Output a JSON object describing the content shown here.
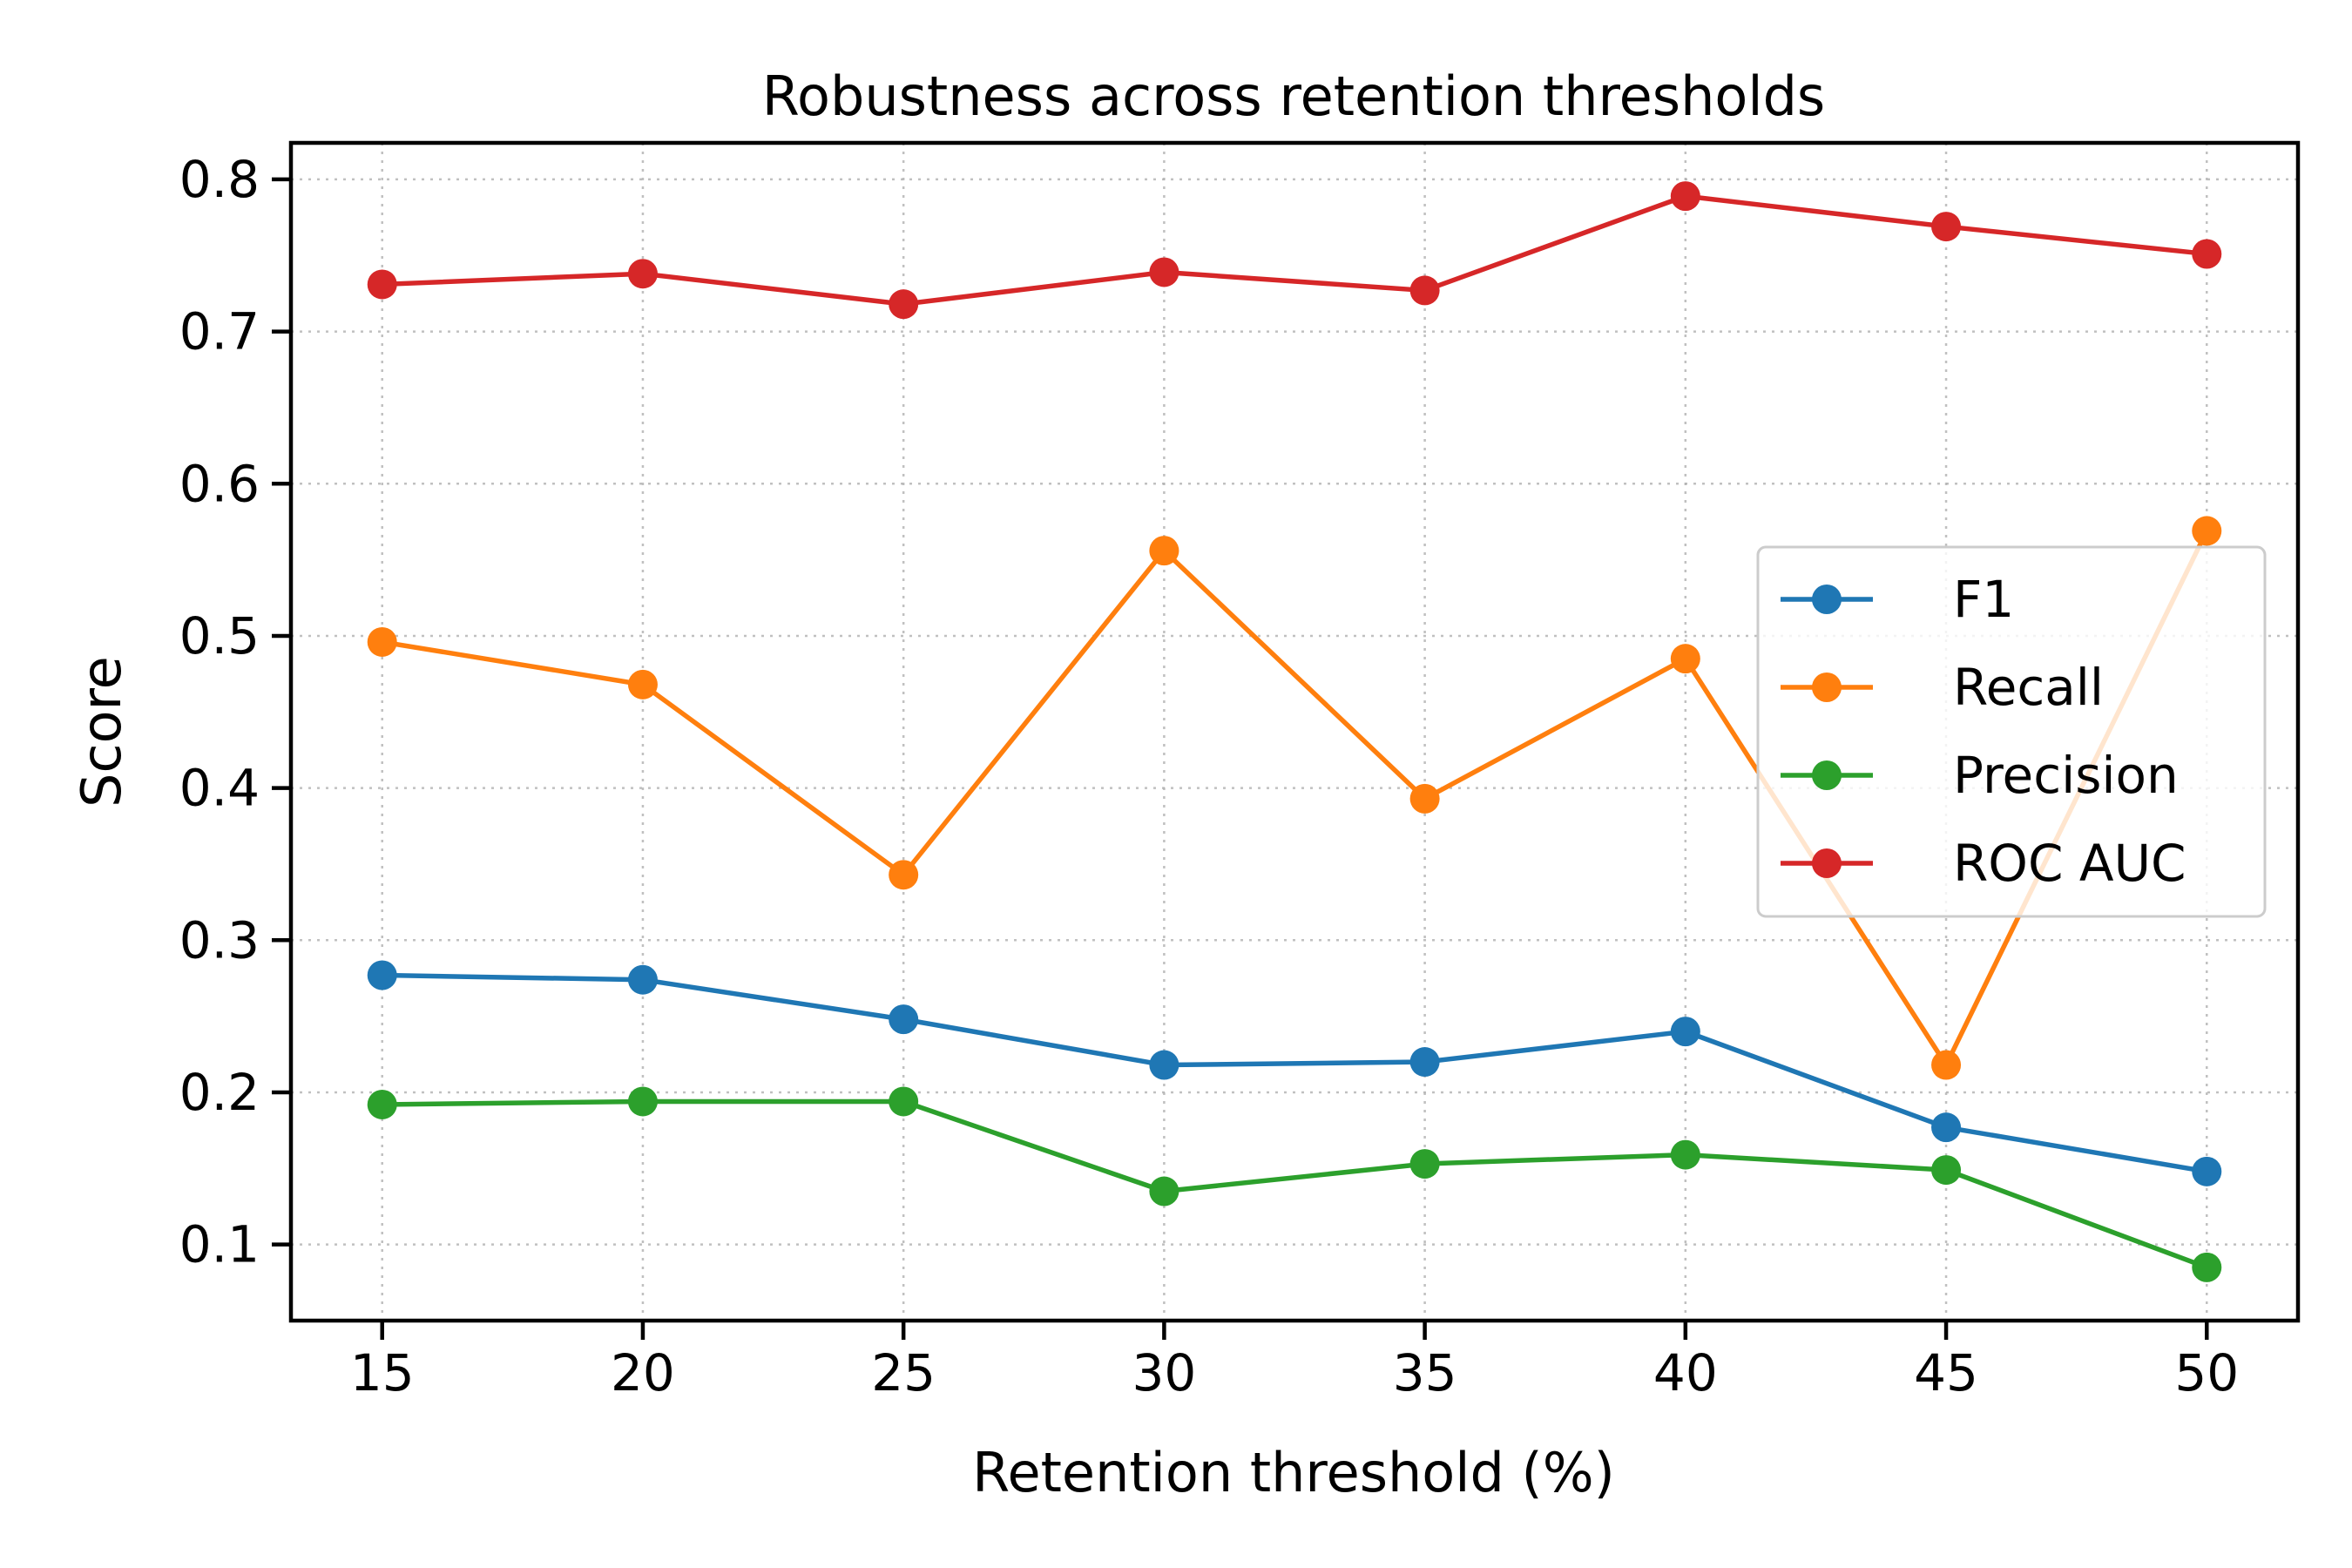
{
  "chart_data": {
    "type": "line",
    "title": "Robustness across retention thresholds",
    "xlabel": "Retention threshold (%)",
    "ylabel": "Score",
    "x": [
      15,
      20,
      25,
      30,
      35,
      40,
      45,
      50
    ],
    "x_tick_labels": [
      "15",
      "20",
      "25",
      "30",
      "35",
      "40",
      "45",
      "50"
    ],
    "xlim": [
      13.25,
      51.75
    ],
    "y_ticks": [
      0.1,
      0.2,
      0.3,
      0.4,
      0.5,
      0.6,
      0.7,
      0.8
    ],
    "y_tick_labels": [
      "0.1",
      "0.2",
      "0.3",
      "0.4",
      "0.5",
      "0.6",
      "0.7",
      "0.8"
    ],
    "ylim": [
      0.05,
      0.824
    ],
    "grid": true,
    "legend_position": "center-right",
    "series": [
      {
        "name": "F1",
        "color": "#1f77b4",
        "values": [
          0.277,
          0.274,
          0.248,
          0.218,
          0.22,
          0.24,
          0.177,
          0.148
        ]
      },
      {
        "name": "Recall",
        "color": "#ff7f0e",
        "values": [
          0.496,
          0.468,
          0.343,
          0.556,
          0.393,
          0.485,
          0.218,
          0.569
        ]
      },
      {
        "name": "Precision",
        "color": "#2ca02c",
        "values": [
          0.192,
          0.194,
          0.194,
          0.135,
          0.153,
          0.159,
          0.149,
          0.085
        ]
      },
      {
        "name": "ROC AUC",
        "color": "#d62728",
        "values": [
          0.731,
          0.738,
          0.718,
          0.739,
          0.727,
          0.789,
          0.769,
          0.751
        ]
      }
    ]
  }
}
